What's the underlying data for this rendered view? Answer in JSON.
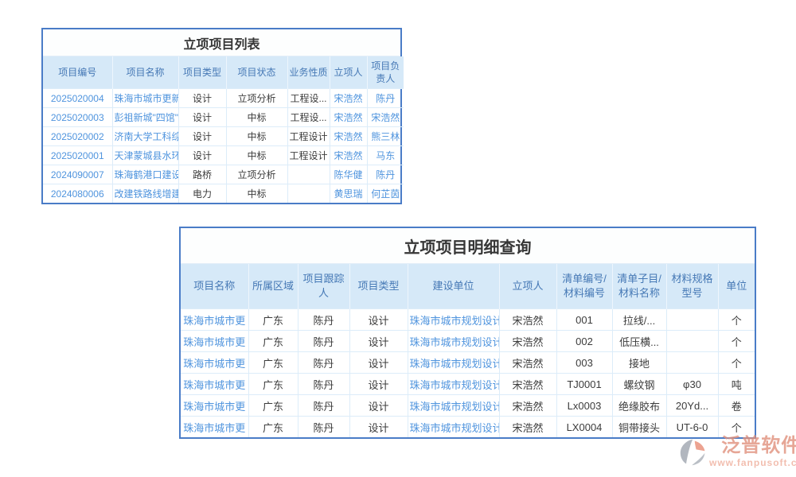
{
  "colors": {
    "panel_border": "#4a7cc7",
    "header_bg": "#d6e9f8",
    "header_text": "#4578b5",
    "link_text": "#4f94de",
    "body_text": "#3c3c3c",
    "row_line": "#dcecf9",
    "brand_color": "#e0907c"
  },
  "list_table": {
    "title": "立项项目列表",
    "columns": [
      "项目编号",
      "项目名称",
      "项目类型",
      "项目状态",
      "业务性质",
      "立项人",
      "项目负责人"
    ],
    "rows": [
      [
        "2025020004",
        "珠海市城市更新...",
        "设计",
        "立项分析",
        "工程设...",
        "宋浩然",
        "陈丹"
      ],
      [
        "2025020003",
        "彭祖新城\"四馆\"...",
        "设计",
        "中标",
        "工程设...",
        "宋浩然",
        "宋浩然"
      ],
      [
        "2025020002",
        "济南大学工科综...",
        "设计",
        "中标",
        "工程设计",
        "宋浩然",
        "熊三林"
      ],
      [
        "2025020001",
        "天津蒙城县水环...",
        "设计",
        "中标",
        "工程设计",
        "宋浩然",
        "马东"
      ],
      [
        "2024090007",
        "珠海鹤港口建设",
        "路桥",
        "立项分析",
        "",
        "陈华健",
        "陈丹"
      ],
      [
        "2024080006",
        "改建铁路线增建...",
        "电力",
        "中标",
        "",
        "黄思瑞",
        "何芷茵"
      ]
    ]
  },
  "detail_table": {
    "title": "立项项目明细查询",
    "columns": [
      "项目名称",
      "所属区域",
      "项目跟踪人",
      "项目类型",
      "建设单位",
      "立项人",
      "清单编号/材料编号",
      "清单子目/材料名称",
      "材料规格型号",
      "单位"
    ],
    "rows": [
      [
        "珠海市城市更",
        "广东",
        "陈丹",
        "设计",
        "珠海市城市规划设计",
        "宋浩然",
        "001",
        "拉线/...",
        "",
        "个"
      ],
      [
        "珠海市城市更",
        "广东",
        "陈丹",
        "设计",
        "珠海市城市规划设计",
        "宋浩然",
        "002",
        "低压横...",
        "",
        "个"
      ],
      [
        "珠海市城市更",
        "广东",
        "陈丹",
        "设计",
        "珠海市城市规划设计",
        "宋浩然",
        "003",
        "接地",
        "",
        "个"
      ],
      [
        "珠海市城市更",
        "广东",
        "陈丹",
        "设计",
        "珠海市城市规划设计",
        "宋浩然",
        "TJ0001",
        "螺纹钢",
        "φ30",
        "吨"
      ],
      [
        "珠海市城市更",
        "广东",
        "陈丹",
        "设计",
        "珠海市城市规划设计",
        "宋浩然",
        "Lx0003",
        "绝缘胶布",
        "20Yd...",
        "卷"
      ],
      [
        "珠海市城市更",
        "广东",
        "陈丹",
        "设计",
        "珠海市城市规划设计",
        "宋浩然",
        "LX0004",
        "铜带接头",
        "UT-6-0",
        "个"
      ]
    ]
  },
  "watermark": {
    "brand": "泛普软件",
    "url": "www.fanpusoft.com"
  }
}
